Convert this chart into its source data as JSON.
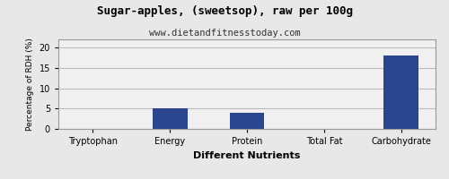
{
  "title": "Sugar-apples, (sweetsop), raw per 100g",
  "subtitle": "www.dietandfitnesstoday.com",
  "xlabel": "Different Nutrients",
  "ylabel": "Percentage of RDH (%)",
  "categories": [
    "Tryptophan",
    "Energy",
    "Protein",
    "Total Fat",
    "Carbohydrate"
  ],
  "values": [
    0,
    5,
    4,
    0,
    18
  ],
  "bar_color": "#2b4590",
  "ylim": [
    0,
    22
  ],
  "yticks": [
    0,
    5,
    10,
    15,
    20
  ],
  "background_color": "#e8e8e8",
  "plot_bg_color": "#f0f0f0",
  "grid_color": "#bbbbbb",
  "border_color": "#999999",
  "title_fontsize": 9,
  "subtitle_fontsize": 7.5,
  "xlabel_fontsize": 8,
  "ylabel_fontsize": 6.5,
  "tick_fontsize": 7
}
